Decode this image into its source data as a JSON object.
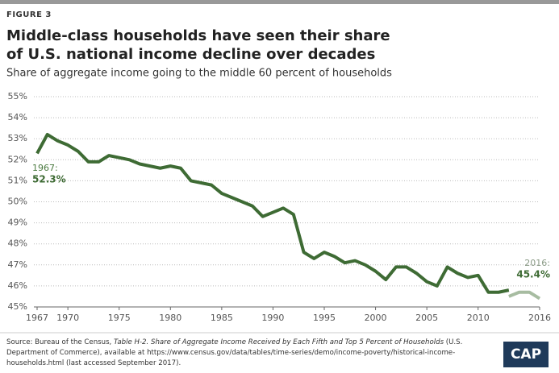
{
  "chart_data": {
    "type": "line",
    "figure_label": "FIGURE 3",
    "title": [
      "Middle-class households have seen their share",
      "of U.S. national income decline over decades"
    ],
    "subtitle": "Share of aggregate income going to the middle 60 percent of households",
    "x": [
      1967,
      1968,
      1969,
      1970,
      1971,
      1972,
      1973,
      1974,
      1975,
      1976,
      1977,
      1978,
      1979,
      1980,
      1981,
      1982,
      1983,
      1984,
      1985,
      1986,
      1987,
      1988,
      1989,
      1990,
      1991,
      1992,
      1993,
      1994,
      1995,
      1996,
      1997,
      1998,
      1999,
      2000,
      2001,
      2002,
      2003,
      2004,
      2005,
      2006,
      2007,
      2008,
      2009,
      2010,
      2011,
      2012,
      2013,
      2014,
      2015,
      2016
    ],
    "series": [
      {
        "color": "#3e6b34",
        "values": [
          52.3,
          53.2,
          52.9,
          52.7,
          52.4,
          51.9,
          51.9,
          52.2,
          52.1,
          52.0,
          51.8,
          51.7,
          51.6,
          51.7,
          51.6,
          51.0,
          50.9,
          50.8,
          50.4,
          50.2,
          50.0,
          49.8,
          49.3,
          49.5,
          49.7,
          49.4,
          47.6,
          47.3,
          47.6,
          47.4,
          47.1,
          47.2,
          47.0,
          46.7,
          46.3,
          46.9,
          46.9,
          46.6,
          46.2,
          46.0,
          46.9,
          46.6,
          46.4,
          46.5,
          45.7,
          45.7,
          45.8,
          null,
          null,
          null
        ]
      },
      {
        "color": "#a7bca1",
        "values": [
          null,
          null,
          null,
          null,
          null,
          null,
          null,
          null,
          null,
          null,
          null,
          null,
          null,
          null,
          null,
          null,
          null,
          null,
          null,
          null,
          null,
          null,
          null,
          null,
          null,
          null,
          null,
          null,
          null,
          null,
          null,
          null,
          null,
          null,
          null,
          null,
          null,
          null,
          null,
          null,
          null,
          null,
          null,
          null,
          null,
          null,
          45.5,
          45.7,
          45.7,
          45.4
        ]
      }
    ],
    "annotations": [
      {
        "label": "1967:",
        "value": "52.3%"
      },
      {
        "label": "2016:",
        "value": "45.4%"
      }
    ],
    "xlim": [
      1967,
      2016
    ],
    "xticks": [
      1967,
      1970,
      1975,
      1980,
      1985,
      1990,
      1995,
      2000,
      2005,
      2010,
      2016
    ],
    "ylim": [
      45,
      55
    ],
    "yticks": [
      {
        "value": 45,
        "label": "45%"
      },
      {
        "value": 46,
        "label": "46%"
      },
      {
        "value": 47,
        "label": "47%"
      },
      {
        "value": 48,
        "label": "48%"
      },
      {
        "value": 49,
        "label": "49%"
      },
      {
        "value": 50,
        "label": "50%"
      },
      {
        "value": 51,
        "label": "51%"
      },
      {
        "value": 52,
        "label": "52%"
      },
      {
        "value": 53,
        "label": "53%"
      },
      {
        "value": 54,
        "label": "54%"
      },
      {
        "value": 55,
        "label": "55%"
      }
    ],
    "grid": true,
    "source": {
      "prefix": "Source: Bureau of the Census, ",
      "italic": "Table H-2. Share of Aggregate Income Received by Each Fifth and Top 5 Percent of Households",
      "suffix": " (U.S. Department of Commerce), available at https://www.census.gov/data/tables/time-series/demo/income-poverty/historical-income-households.html (last accessed September 2017)."
    },
    "logo": "CAP"
  }
}
